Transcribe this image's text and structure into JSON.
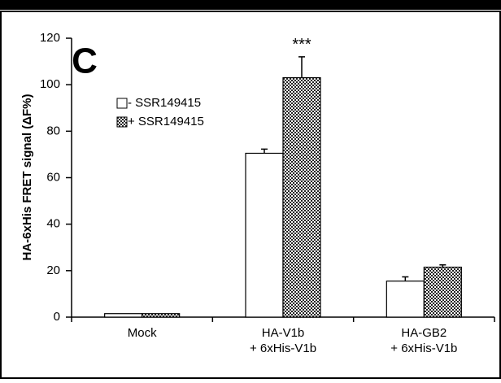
{
  "chart_data": {
    "type": "bar",
    "panel_label": "C",
    "ylabel": "HA-6xHis FRET signal (ΔF%)",
    "categories": [
      [
        "Mock"
      ],
      [
        "HA-V1b",
        "+ 6xHis-V1b"
      ],
      [
        "HA-GB2",
        "+ 6xHis-V1b"
      ]
    ],
    "series": [
      {
        "name": "- SSR149415",
        "color": "#ffffff",
        "values": [
          1.5,
          70.5,
          15.5
        ],
        "errors": [
          null,
          1.8,
          1.8
        ]
      },
      {
        "name": "+ SSR149415",
        "color": "checker",
        "values": [
          1.5,
          103,
          21.5
        ],
        "errors": [
          null,
          9,
          1
        ]
      }
    ],
    "annotation": "***",
    "ylim": [
      0,
      120
    ],
    "yticks": [
      0,
      20,
      40,
      60,
      80,
      100,
      120
    ]
  }
}
